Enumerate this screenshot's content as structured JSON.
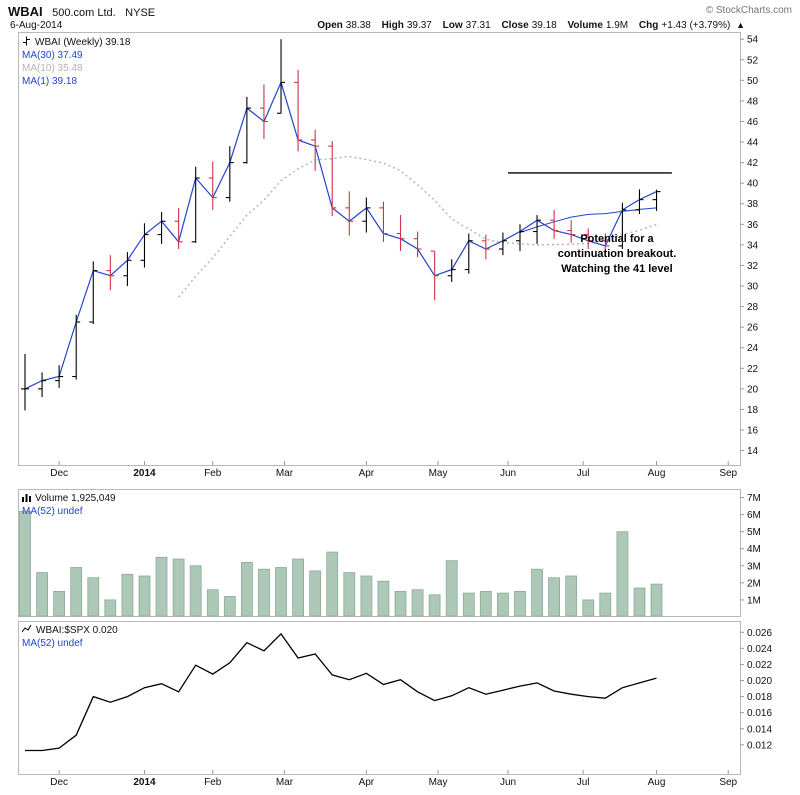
{
  "colors": {
    "up_bar": "#000000",
    "down_bar": "#cc3344",
    "ma_blue": "#2244cc",
    "ma_gray": "#b3b3b3",
    "volume_fill": "#adc8b6",
    "volume_stroke": "#8aab98",
    "ratio_line": "#000000",
    "axis": "#999999",
    "copyright_gray": "#757575"
  },
  "header": {
    "symbol": "WBAI",
    "company": "500.com Ltd.",
    "exchange": "NYSE",
    "date": "6-Aug-2014",
    "copyright": "© StockCharts.com",
    "quote": {
      "open_label": "Open",
      "open_value": "38.38",
      "high_label": "High",
      "high_value": "39.37",
      "low_label": "Low",
      "low_value": "37.31",
      "close_label": "Close",
      "close_value": "39.18",
      "volume_label": "Volume",
      "volume_value": "1.9M",
      "chg_label": "Chg",
      "chg_value": "+1.43 (+3.79%)",
      "arrow": "▲"
    }
  },
  "chart_data": [
    {
      "type": "ohlc",
      "title": "WBAI (Weekly)",
      "interval": "weekly",
      "legend": [
        {
          "label": "WBAI (Weekly) 39.18"
        },
        {
          "label": "MA(30) 37.49",
          "color_key": "ma_blue"
        },
        {
          "label": "MA(10) 35.48",
          "color_key": "ma_gray"
        },
        {
          "label": "MA(1) 39.18",
          "color_key": "ma_blue"
        }
      ],
      "ylim": [
        12.5,
        54.7
      ],
      "yticks": [
        54,
        52,
        50,
        48,
        46,
        44,
        42,
        40,
        38,
        36,
        34,
        32,
        30,
        28,
        26,
        24,
        22,
        20,
        18,
        16,
        14
      ],
      "high": [
        23.4,
        21.6,
        22.3,
        27.2,
        32.4,
        33.0,
        33.3,
        36.1,
        37.2,
        37.6,
        41.6,
        42.1,
        43.6,
        48.4,
        49.6,
        54.0,
        51.0,
        45.2,
        44.1,
        39.2,
        38.6,
        38.2,
        36.9,
        35.3,
        33.4,
        32.6,
        35.1,
        35.0,
        35.2,
        36.0,
        36.9,
        37.4,
        36.4,
        35.6,
        35.1,
        38.1,
        39.4,
        39.37
      ],
      "low": [
        17.9,
        19.2,
        20.1,
        20.9,
        26.3,
        29.6,
        30.0,
        31.8,
        34.1,
        33.6,
        34.2,
        37.4,
        38.2,
        41.9,
        44.3,
        46.8,
        43.1,
        41.2,
        36.8,
        34.9,
        35.2,
        34.3,
        33.4,
        32.8,
        28.6,
        30.4,
        31.2,
        32.6,
        33.0,
        33.4,
        34.1,
        34.6,
        34.2,
        33.6,
        33.1,
        33.6,
        37.0,
        37.31
      ],
      "close": [
        20.0,
        20.8,
        21.2,
        26.5,
        31.5,
        31.0,
        32.5,
        35.0,
        36.3,
        34.3,
        40.5,
        38.6,
        42.0,
        47.3,
        46.0,
        49.8,
        44.2,
        43.6,
        37.6,
        36.3,
        37.6,
        35.1,
        34.6,
        33.6,
        31.0,
        31.6,
        34.4,
        33.6,
        34.4,
        35.3,
        36.4,
        35.4,
        35.0,
        34.4,
        33.9,
        37.4,
        38.4,
        39.18
      ],
      "bar_color_rule": "red when close below previous close, else black",
      "resistance": {
        "level": 41,
        "from_i": 28.3,
        "to_i": 37.9
      },
      "annotation": {
        "lines": [
          "Potential for a",
          "continuation breakout.",
          "Watching the 41 level"
        ]
      },
      "xticks": [
        {
          "label": "Dec",
          "i": 2.0
        },
        {
          "label": "2014",
          "i": 7.0,
          "bold": true
        },
        {
          "label": "Feb",
          "i": 11.0
        },
        {
          "label": "Mar",
          "i": 15.2
        },
        {
          "label": "Apr",
          "i": 20.0
        },
        {
          "label": "May",
          "i": 24.2
        },
        {
          "label": "Jun",
          "i": 28.3
        },
        {
          "label": "Jul",
          "i": 32.7
        },
        {
          "label": "Aug",
          "i": 37.0
        },
        {
          "label": "Sep",
          "i": 41.2
        }
      ]
    },
    {
      "type": "bar",
      "title": "Volume",
      "legend": [
        {
          "label": "Volume 1,925,049"
        },
        {
          "label": "MA(52) undef",
          "color_key": "ma_blue"
        }
      ],
      "unit": "millions of shares",
      "ylim": [
        0,
        7.5
      ],
      "yticks": [
        7,
        6,
        5,
        4,
        3,
        2,
        1
      ],
      "values": [
        6.2,
        2.6,
        1.5,
        2.9,
        2.3,
        1.0,
        2.5,
        2.4,
        3.5,
        3.4,
        3.0,
        1.6,
        1.2,
        3.2,
        2.8,
        2.9,
        3.4,
        2.7,
        3.8,
        2.6,
        2.4,
        2.1,
        1.5,
        1.6,
        1.3,
        3.3,
        1.4,
        1.5,
        1.4,
        1.5,
        2.8,
        2.3,
        2.4,
        1.0,
        1.4,
        5.0,
        1.7,
        1.925
      ]
    },
    {
      "type": "line",
      "title": "WBAI:$SPX ratio",
      "legend": [
        {
          "label": "WBAI:$SPX 0.020"
        },
        {
          "label": "MA(52) undef",
          "color_key": "ma_blue"
        }
      ],
      "ylim": [
        0.00825,
        0.0274
      ],
      "yticks": [
        0.026,
        0.024,
        0.022,
        0.02,
        0.018,
        0.016,
        0.014,
        0.012
      ],
      "values": [
        0.0113,
        0.0113,
        0.0116,
        0.0132,
        0.018,
        0.0173,
        0.018,
        0.0191,
        0.0196,
        0.0186,
        0.0219,
        0.0208,
        0.0222,
        0.0247,
        0.0237,
        0.0258,
        0.0228,
        0.0233,
        0.0207,
        0.0201,
        0.0209,
        0.0195,
        0.0201,
        0.0186,
        0.0175,
        0.0181,
        0.0191,
        0.0183,
        0.0188,
        0.0193,
        0.0197,
        0.0187,
        0.0183,
        0.018,
        0.0178,
        0.0191,
        0.0197,
        0.0203
      ]
    }
  ]
}
